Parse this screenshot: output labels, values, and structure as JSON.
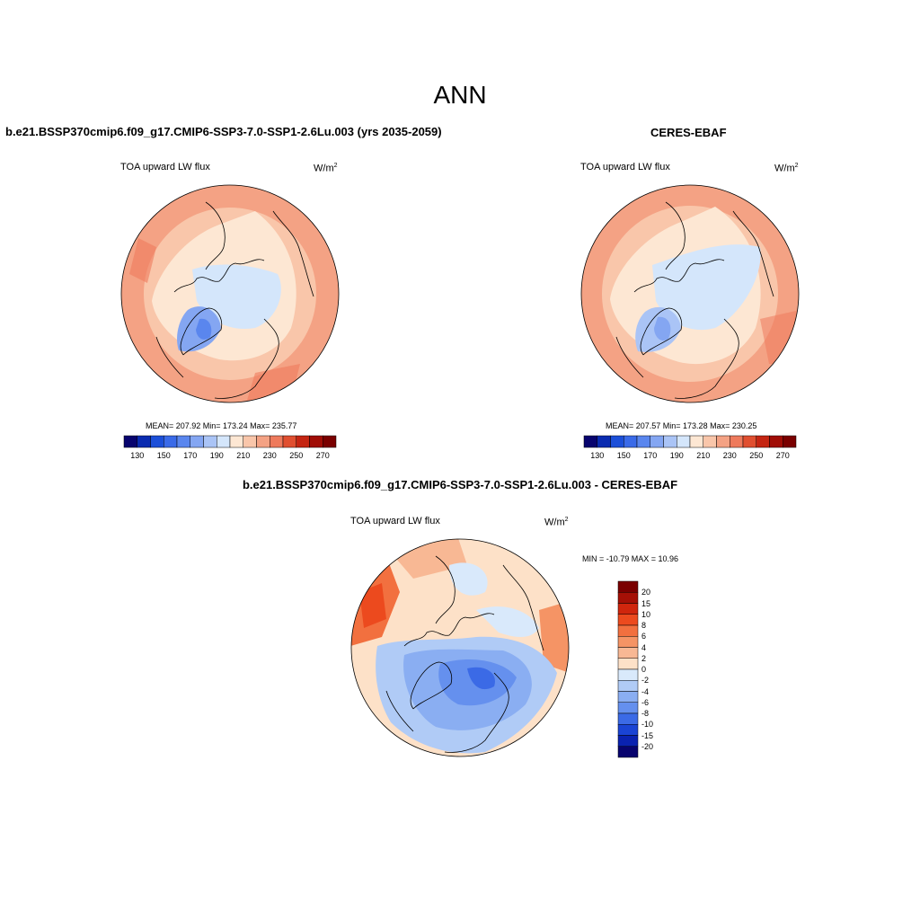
{
  "title": "ANN",
  "panels": [
    {
      "id": "model",
      "title": "b.e21.BSSP370cmip6.f09_g17.CMIP6-SSP3-7.0-SSP1-2.6Lu.003 (yrs 2035-2059)",
      "variable": "TOA upward LW flux",
      "units": "W/m",
      "units_exp": "2",
      "stats": "MEAN= 207.92  Min= 173.24  Max= 235.77"
    },
    {
      "id": "obs",
      "title": "CERES-EBAF",
      "variable": "TOA upward LW flux",
      "units": "W/m",
      "units_exp": "2",
      "stats": "MEAN= 207.57  Min= 173.28  Max= 230.25"
    },
    {
      "id": "diff",
      "title": "b.e21.BSSP370cmip6.f09_g17.CMIP6-SSP3-7.0-SSP1-2.6Lu.003 - CERES-EBAF",
      "variable": "TOA upward LW flux",
      "units": "W/m",
      "units_exp": "2",
      "stats": "MIN = -10.79 MAX =  10.96"
    }
  ],
  "colorbars": {
    "absolute": {
      "colors": [
        "#08046e",
        "#0a2bb0",
        "#1c4fd8",
        "#3a6ae8",
        "#5a86ee",
        "#84a6f2",
        "#aac4f6",
        "#d4e6fb",
        "#fde7d3",
        "#f9c6aa",
        "#f4a284",
        "#ee7a5c",
        "#e04f30",
        "#c42512",
        "#a00d06",
        "#7a0000"
      ],
      "tick_labels": [
        "130",
        "150",
        "170",
        "190",
        "210",
        "230",
        "250",
        "270"
      ]
    },
    "difference": {
      "colors": [
        "#7a0000",
        "#a51006",
        "#d0260d",
        "#ec4a1e",
        "#f2703f",
        "#f59465",
        "#f8b894",
        "#fde1c8",
        "#d9e9fb",
        "#b0cbf6",
        "#8aaef2",
        "#6590ee",
        "#3b6ae6",
        "#1a44d4",
        "#0a22b0",
        "#08046e"
      ],
      "tick_labels": [
        "20",
        "15",
        "10",
        "8",
        "6",
        "4",
        "2",
        "0",
        "-2",
        "-4",
        "-6",
        "-8",
        "-10",
        "-15",
        "-20"
      ]
    }
  }
}
